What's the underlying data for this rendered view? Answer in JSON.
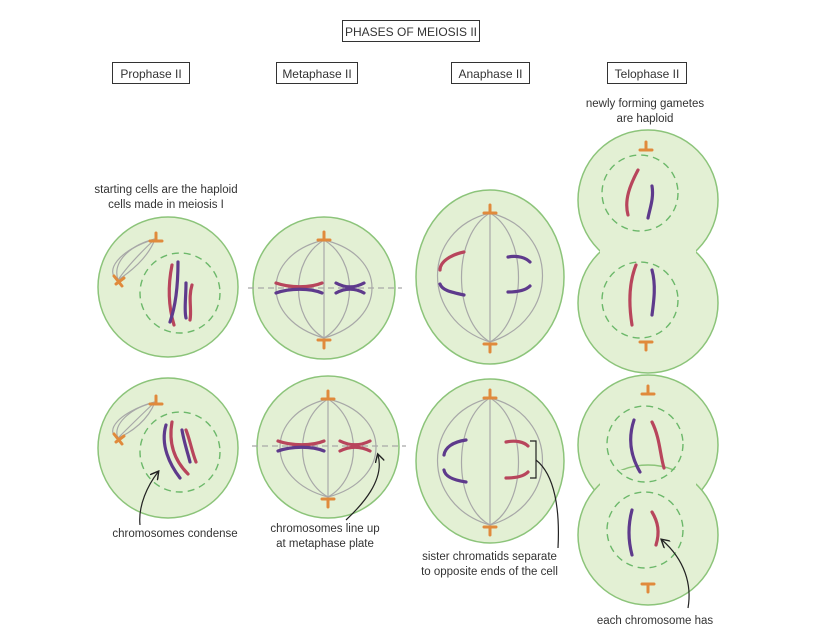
{
  "title": "PHASES OF MEIOSIS II",
  "phases": [
    "Prophase II",
    "Metaphase II",
    "Anaphase II",
    "Telophase II"
  ],
  "annotations": {
    "telophase_top": [
      "newly forming gametes",
      "are haploid"
    ],
    "prophase_top": [
      "starting cells are the haploid",
      "cells made in meiosis I"
    ],
    "prophase_bottom": [
      "chromosomes condense"
    ],
    "metaphase_bottom": [
      "chromosomes line up",
      "at metaphase plate"
    ],
    "anaphase_bottom": [
      "sister chromatids separate",
      "to opposite ends of the cell"
    ],
    "telophase_bottom": [
      "each chromosome has"
    ]
  },
  "colors": {
    "cell_fill": "#e3f0d4",
    "cell_stroke": "#8cc47a",
    "nuclear_envelope": "#6cb86a",
    "spindle": "#aaaaaa",
    "centrosome": "#e08a3c",
    "chromosome_red": "#b8455c",
    "chromosome_purple": "#5e3a8c"
  }
}
